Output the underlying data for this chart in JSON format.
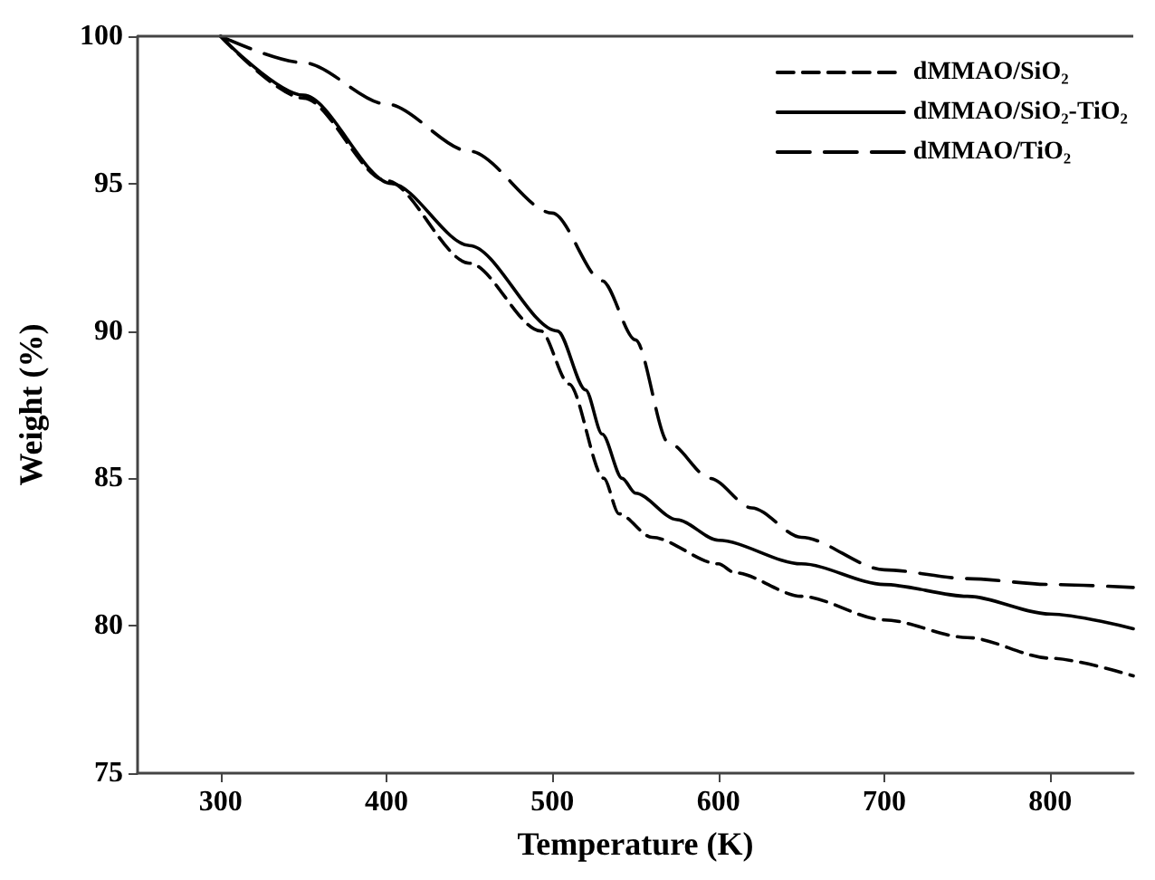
{
  "chart_data": {
    "type": "line",
    "xlabel": "Temperature (K)",
    "ylabel": "Weight (%)",
    "xlim": [
      250,
      850
    ],
    "xticks": [
      300,
      400,
      500,
      600,
      700,
      800
    ],
    "ylim": [
      75,
      100
    ],
    "yticks": [
      75,
      80,
      85,
      90,
      95,
      100
    ],
    "grid": false,
    "legend": "top right",
    "marker": "none",
    "series": [
      {
        "name": "dMMAO/SiO₂",
        "color": "#000000",
        "line_style": "dashed",
        "x": [
          300,
          350,
          400,
          450,
          493,
          510,
          531,
          540,
          560,
          600,
          610,
          650,
          700,
          750,
          800,
          850
        ],
        "values": [
          100,
          97.9,
          95.1,
          92.3,
          90,
          88.2,
          85,
          83.8,
          83.0,
          82.1,
          81.8,
          81.0,
          80.2,
          79.6,
          78.9,
          78.3
        ]
      },
      {
        "name": "dMMAO/SiO₂-TiO₂",
        "color": "#000000",
        "line_style": "solid",
        "x": [
          300,
          350,
          403,
          450,
          503,
          520,
          530,
          542,
          550,
          575,
          600,
          650,
          700,
          750,
          800,
          850
        ],
        "values": [
          100,
          98.0,
          95,
          92.9,
          90,
          88,
          86.5,
          85,
          84.5,
          83.6,
          82.9,
          82.1,
          81.4,
          81.0,
          80.4,
          79.9
        ]
      },
      {
        "name": "dMMAO/TiO₂",
        "color": "#000000",
        "line_style": "dashed",
        "x": [
          300,
          350,
          400,
          450,
          500,
          530,
          550,
          570,
          595,
          620,
          650,
          700,
          750,
          800,
          850
        ],
        "values": [
          100,
          99.1,
          97.7,
          96.1,
          94.0,
          91.7,
          89.7,
          86.2,
          85,
          84.0,
          83.0,
          81.9,
          81.6,
          81.4,
          81.3
        ]
      }
    ]
  }
}
